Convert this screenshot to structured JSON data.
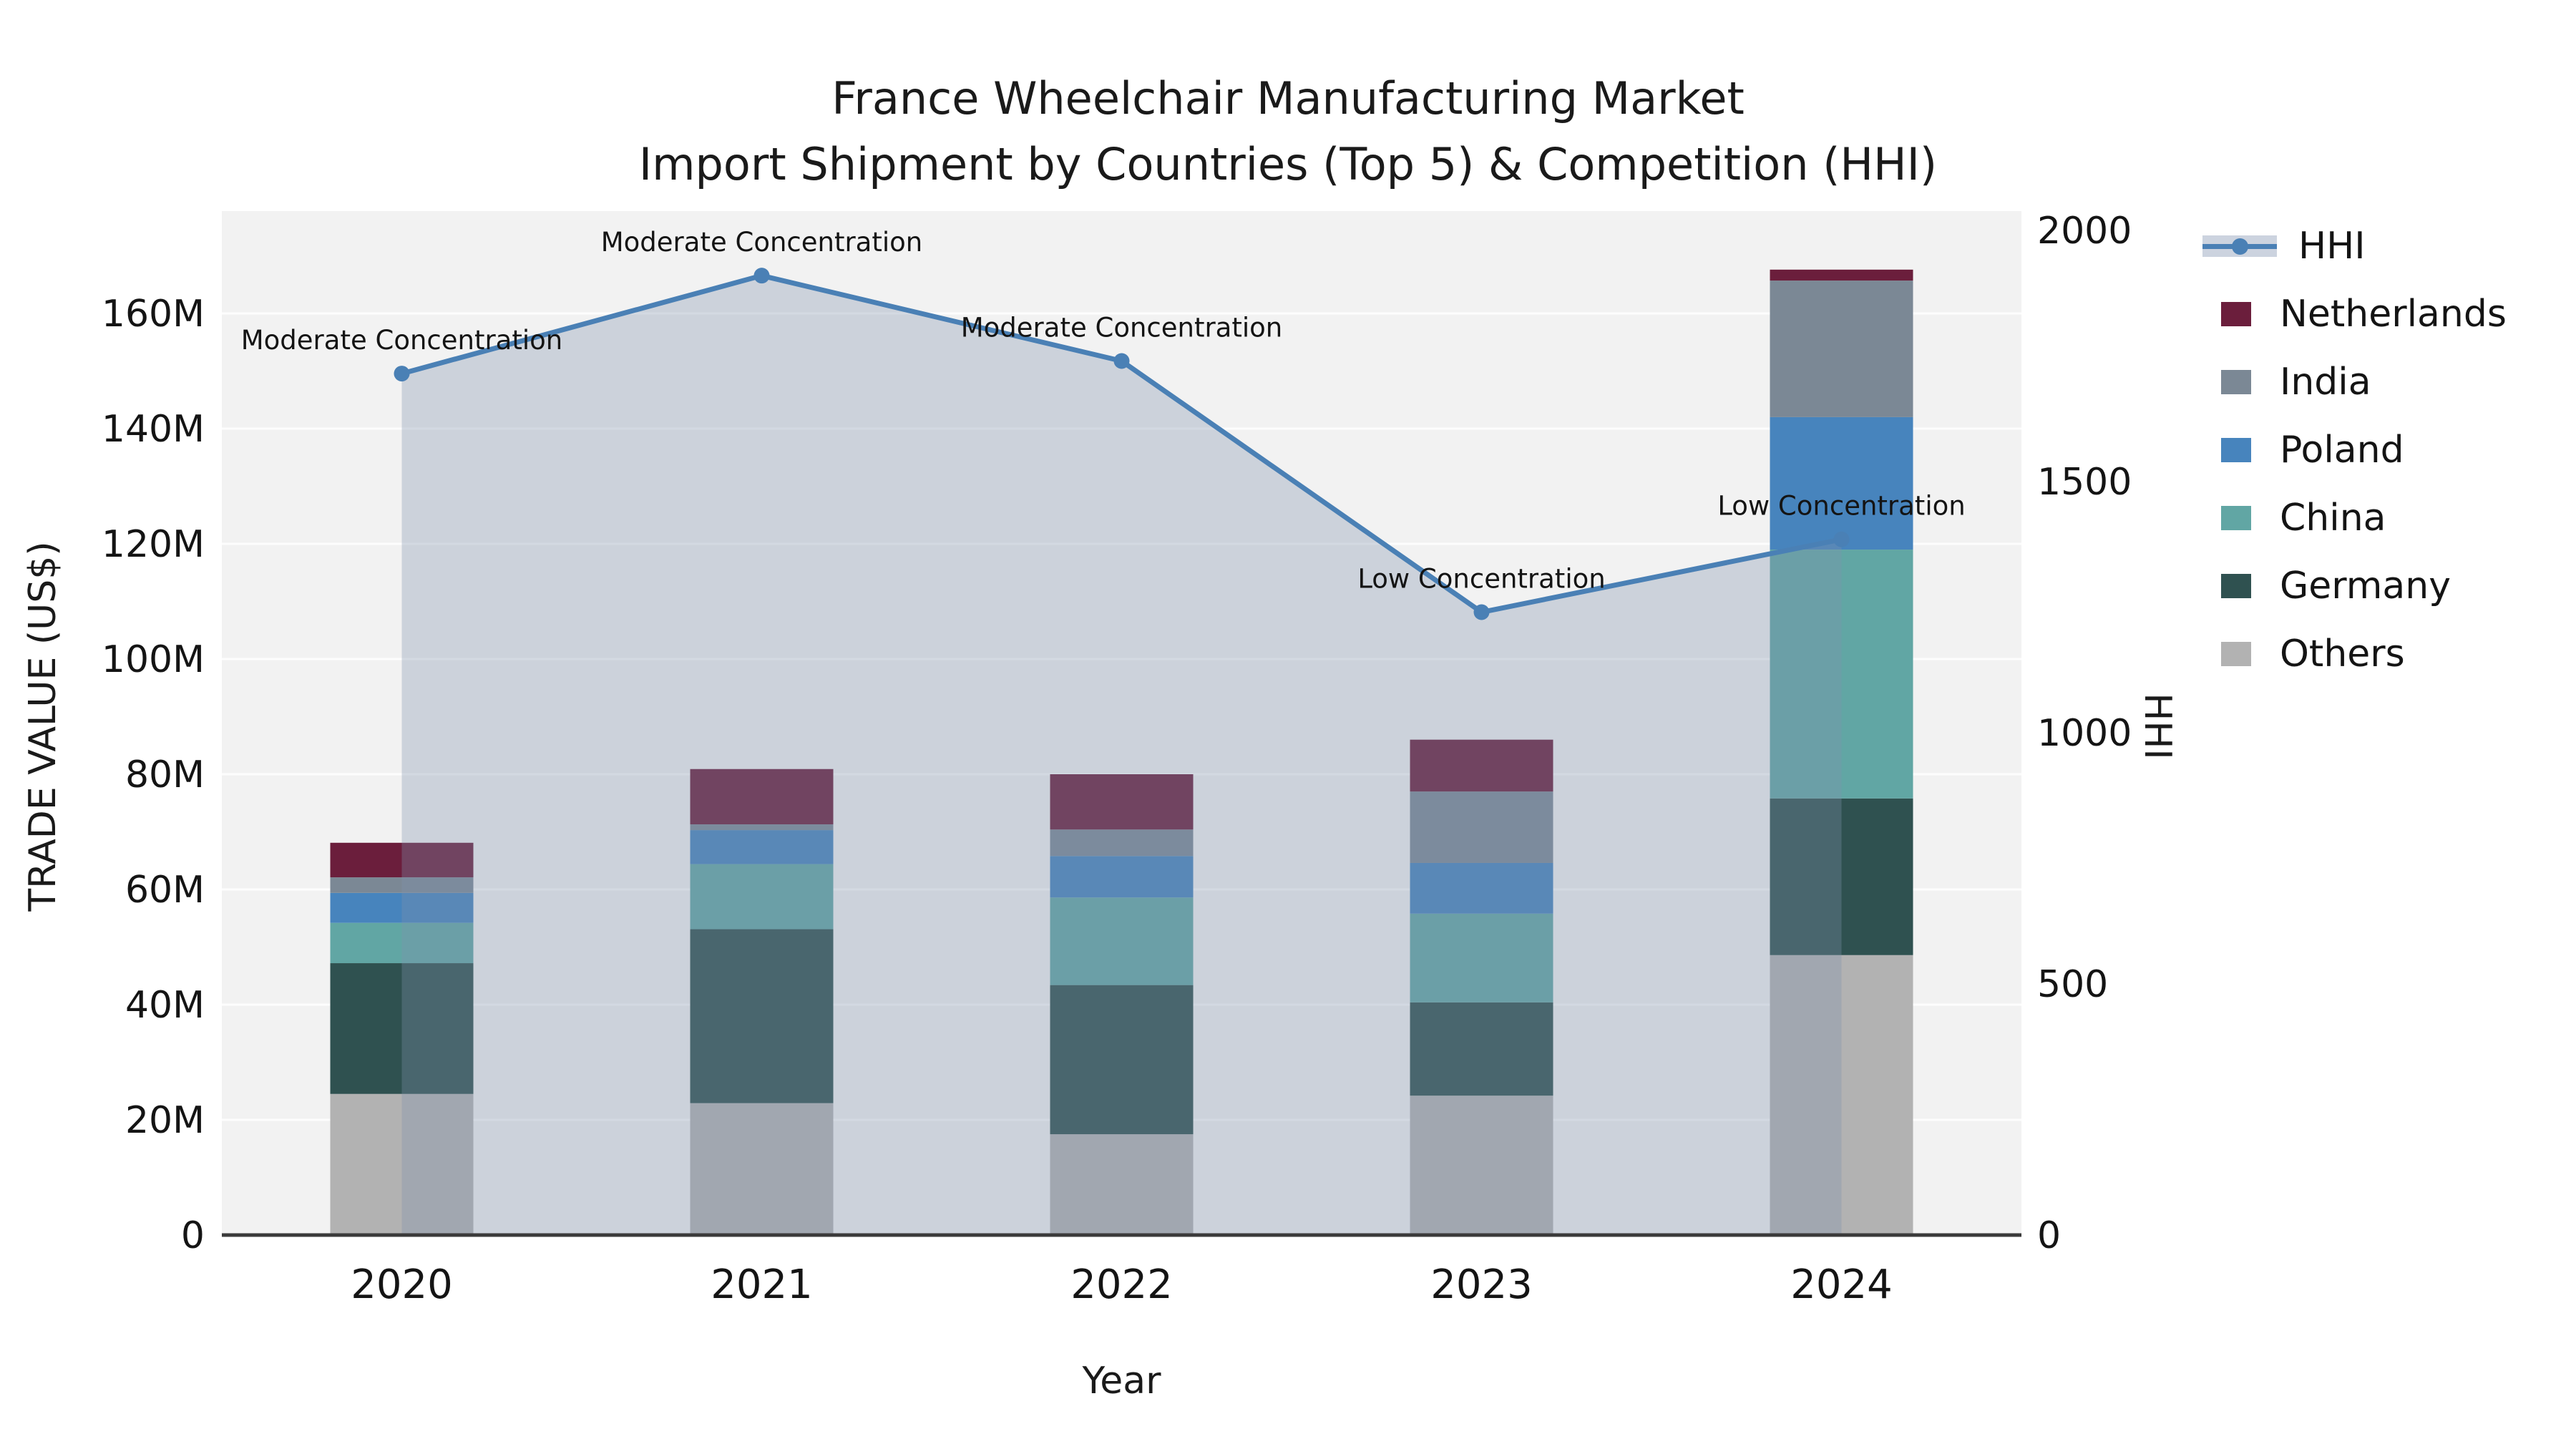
{
  "chart_data": {
    "type": "bar",
    "subtype": "stacked-bars-with-line-area-dual-axis",
    "title_line1": "France Wheelchair Manufacturing Market",
    "title_line2": "Import Shipment by Countries (Top 5) & Competition (HHI)",
    "xlabel": "Year",
    "ylabel_left": "TRADE VALUE (US$)",
    "ylabel_right": "HHI",
    "unit_left": "million US$",
    "categories": [
      "2020",
      "2021",
      "2022",
      "2023",
      "2024"
    ],
    "series": [
      {
        "name": "Others",
        "color": "#B2B2B2",
        "values": [
          24.5,
          22.9,
          17.5,
          24.2,
          48.6
        ]
      },
      {
        "name": "Germany",
        "color": "#2F5150",
        "values": [
          22.7,
          30.2,
          25.9,
          16.2,
          27.2
        ]
      },
      {
        "name": "China",
        "color": "#61A6A4",
        "values": [
          7.0,
          11.3,
          15.2,
          15.4,
          43.2
        ]
      },
      {
        "name": "Poland",
        "color": "#4784BD",
        "values": [
          5.2,
          5.9,
          7.2,
          8.8,
          23.0
        ]
      },
      {
        "name": "India",
        "color": "#7B8895",
        "values": [
          2.7,
          1.0,
          4.6,
          12.4,
          23.7
        ]
      },
      {
        "name": "Netherlands",
        "color": "#6B1E3C",
        "values": [
          6.0,
          9.6,
          9.6,
          9.0,
          1.9
        ]
      }
    ],
    "bar_totals": [
      68.1,
      80.9,
      80.0,
      86.0,
      167.6
    ],
    "line_series": {
      "name": "HHI",
      "color": "#4A80B5",
      "area_color": "rgba(128,146,174,0.33)",
      "values": [
        1715,
        1910,
        1740,
        1240,
        1385
      ]
    },
    "annotations": [
      "Moderate Concentration",
      "Moderate Concentration",
      "Moderate Concentration",
      "Low Concentration",
      "Low Concentration"
    ],
    "y_left": {
      "ticks": [
        0,
        20,
        40,
        60,
        80,
        100,
        120,
        140,
        160
      ],
      "tick_labels": [
        "0",
        "20M",
        "40M",
        "60M",
        "80M",
        "100M",
        "120M",
        "140M",
        "160M"
      ],
      "lim": [
        0,
        177.8
      ],
      "grid": true
    },
    "y_right": {
      "ticks": [
        0,
        500,
        1000,
        1500,
        2000
      ],
      "tick_labels": [
        "0",
        "500",
        "1000",
        "1500",
        "2000"
      ],
      "lim": [
        0,
        2038
      ],
      "grid": false
    },
    "legend": [
      "HHI",
      "Netherlands",
      "India",
      "Poland",
      "China",
      "Germany",
      "Others"
    ],
    "legend_position": "right",
    "style": {
      "plot_bg": "#F2F2F2",
      "grid_color": "#FFFFFF",
      "axis_line_color": "#3A3A3A",
      "text_color": "#141414"
    }
  }
}
